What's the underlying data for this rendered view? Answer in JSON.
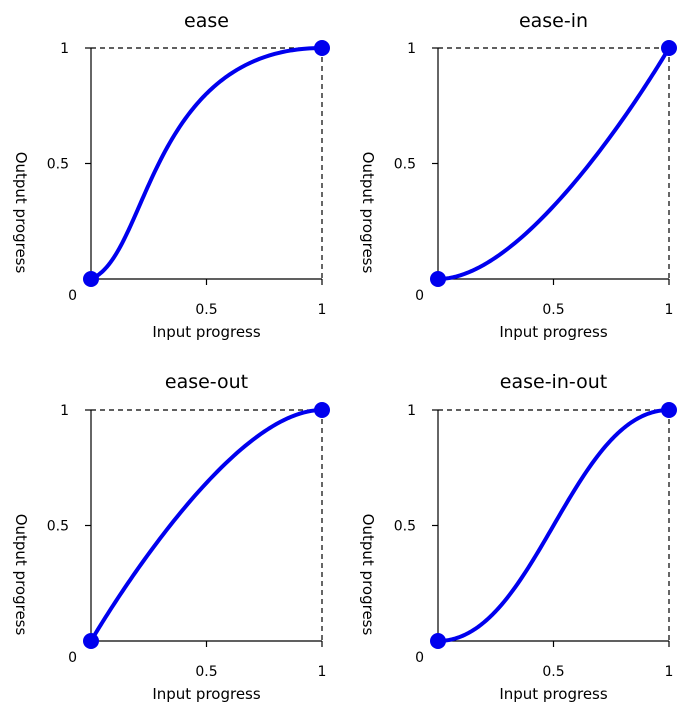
{
  "colors": {
    "curve": "#0000ee",
    "axis": "#000000"
  },
  "chart_data": [
    {
      "type": "line",
      "title": "ease",
      "xlabel": "Input progress",
      "ylabel": "Output progress",
      "xlim": [
        0,
        1
      ],
      "ylim": [
        0,
        1
      ],
      "x_ticks": [
        "0.5",
        "1"
      ],
      "y_ticks": [
        "0",
        "0.5",
        "1"
      ],
      "grid": false,
      "cubic_bezier": [
        0.25,
        0.1,
        0.25,
        1.0
      ],
      "endpoints": [
        [
          0,
          0
        ],
        [
          1,
          1
        ]
      ]
    },
    {
      "type": "line",
      "title": "ease-in",
      "xlabel": "Input progress",
      "ylabel": "Output progress",
      "xlim": [
        0,
        1
      ],
      "ylim": [
        0,
        1
      ],
      "x_ticks": [
        "0.5",
        "1"
      ],
      "y_ticks": [
        "0",
        "0.5",
        "1"
      ],
      "grid": false,
      "cubic_bezier": [
        0.42,
        0.0,
        1.0,
        1.0
      ],
      "endpoints": [
        [
          0,
          0
        ],
        [
          1,
          1
        ]
      ]
    },
    {
      "type": "line",
      "title": "ease-out",
      "xlabel": "Input progress",
      "ylabel": "Output progress",
      "xlim": [
        0,
        1
      ],
      "ylim": [
        0,
        1
      ],
      "x_ticks": [
        "0.5",
        "1"
      ],
      "y_ticks": [
        "0",
        "0.5",
        "1"
      ],
      "grid": false,
      "cubic_bezier": [
        0.0,
        0.0,
        0.58,
        1.0
      ],
      "endpoints": [
        [
          0,
          0
        ],
        [
          1,
          1
        ]
      ]
    },
    {
      "type": "line",
      "title": "ease-in-out",
      "xlabel": "Input progress",
      "ylabel": "Output progress",
      "xlim": [
        0,
        1
      ],
      "ylim": [
        0,
        1
      ],
      "x_ticks": [
        "0.5",
        "1"
      ],
      "y_ticks": [
        "0",
        "0.5",
        "1"
      ],
      "grid": false,
      "cubic_bezier": [
        0.42,
        0.0,
        0.58,
        1.0
      ],
      "endpoints": [
        [
          0,
          0
        ],
        [
          1,
          1
        ]
      ]
    }
  ]
}
